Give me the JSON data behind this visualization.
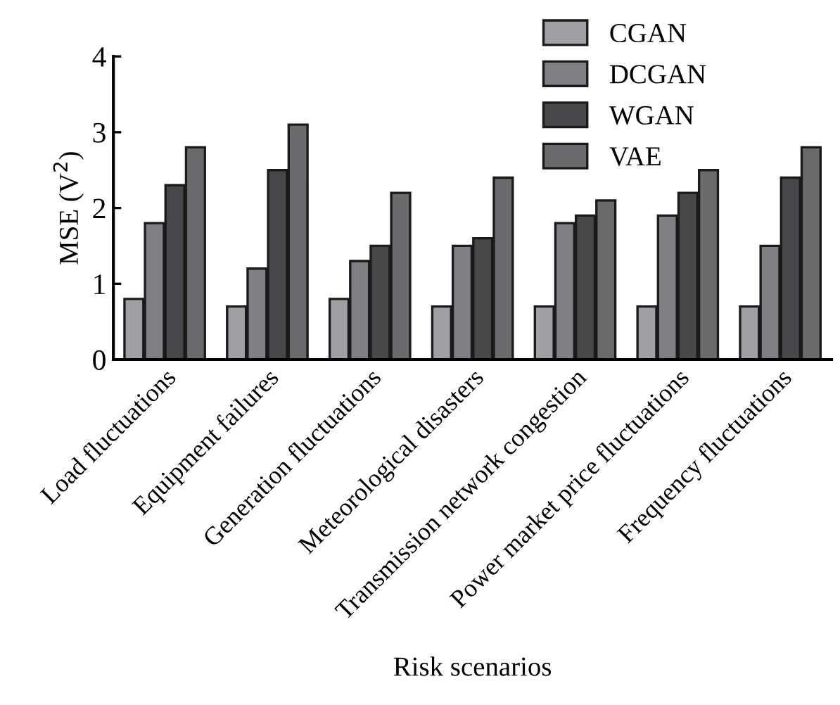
{
  "chart_data": {
    "type": "bar",
    "xlabel": "Risk scenarios",
    "ylabel": "MSE (V$^{2}$)",
    "categories": [
      "Load fluctuations",
      "Equipment failures",
      "Generation fluctuations",
      "Meteorological disasters",
      "Transmission network congestion",
      "Power market price fluctuations",
      "Frequency fluctuations"
    ],
    "series": [
      {
        "name": "CGAN",
        "color": "#a0a0a4",
        "values": [
          0.8,
          0.7,
          0.8,
          0.7,
          0.7,
          0.7,
          0.7
        ]
      },
      {
        "name": "DCGAN",
        "color": "#808084",
        "values": [
          1.8,
          1.2,
          1.3,
          1.5,
          1.8,
          1.9,
          1.5
        ]
      },
      {
        "name": "WGAN",
        "color": "#48484a",
        "values": [
          2.3,
          2.5,
          1.5,
          1.6,
          1.9,
          2.2,
          2.4
        ]
      },
      {
        "name": "VAE",
        "color": "#6a6a6c",
        "values": [
          2.8,
          3.1,
          2.2,
          2.4,
          2.1,
          2.5,
          2.8
        ]
      }
    ],
    "ylim": [
      0,
      4
    ],
    "yticks": [
      0,
      1,
      2,
      3,
      4
    ],
    "grid": false,
    "legend": "top right"
  }
}
